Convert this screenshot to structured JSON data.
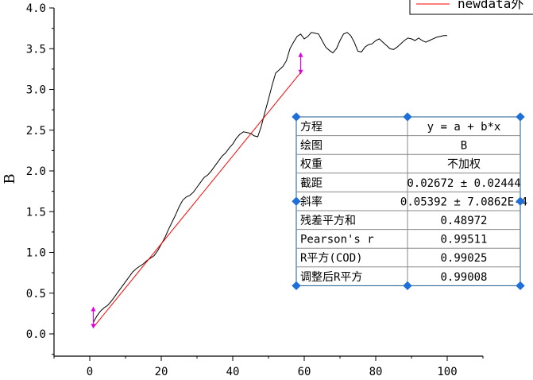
{
  "chart_data": {
    "type": "scatter",
    "xlabel": "",
    "ylabel": "B",
    "xlim": [
      -10,
      110
    ],
    "ylim": [
      -0.1,
      4.0
    ],
    "x_ticks": [
      "0",
      "20",
      "40",
      "60",
      "80",
      "100"
    ],
    "y_ticks": [
      "0.0",
      "0.5",
      "1.0",
      "1.5",
      "2.0",
      "2.5",
      "3.0",
      "3.5",
      "4.0"
    ],
    "series": [
      {
        "name": "",
        "color": "#000000",
        "x": [
          1,
          2,
          3,
          4,
          5,
          6,
          7,
          8,
          9,
          10,
          11,
          12,
          13,
          14,
          15,
          16,
          17,
          18,
          19,
          20,
          21,
          22,
          23,
          24,
          25,
          26,
          27,
          28,
          29,
          30,
          31,
          32,
          33,
          34,
          35,
          36,
          37,
          38,
          39,
          40,
          41,
          42,
          43,
          44,
          45,
          46,
          47,
          48,
          49,
          50,
          51,
          52,
          53,
          54,
          55,
          56,
          57,
          58,
          59,
          60,
          61,
          62,
          63,
          64,
          65,
          66,
          67,
          68,
          69,
          70,
          71,
          72,
          73,
          74,
          75,
          76,
          77,
          78,
          79,
          80,
          81,
          82,
          83,
          84,
          85,
          86,
          87,
          88,
          89,
          90,
          91,
          92,
          93,
          94,
          95,
          96,
          97,
          98,
          99,
          100
        ],
        "y": [
          0.14,
          0.22,
          0.28,
          0.32,
          0.35,
          0.4,
          0.46,
          0.52,
          0.58,
          0.64,
          0.7,
          0.76,
          0.8,
          0.83,
          0.86,
          0.9,
          0.93,
          0.96,
          1.02,
          1.1,
          1.18,
          1.28,
          1.37,
          1.46,
          1.56,
          1.64,
          1.68,
          1.7,
          1.74,
          1.8,
          1.86,
          1.92,
          1.95,
          2.0,
          2.06,
          2.12,
          2.18,
          2.22,
          2.28,
          2.33,
          2.4,
          2.45,
          2.48,
          2.47,
          2.46,
          2.43,
          2.42,
          2.55,
          2.72,
          2.88,
          3.05,
          3.2,
          3.24,
          3.28,
          3.35,
          3.5,
          3.58,
          3.65,
          3.68,
          3.62,
          3.65,
          3.7,
          3.69,
          3.68,
          3.6,
          3.52,
          3.48,
          3.45,
          3.5,
          3.6,
          3.68,
          3.7,
          3.66,
          3.58,
          3.47,
          3.46,
          3.52,
          3.55,
          3.56,
          3.6,
          3.62,
          3.58,
          3.54,
          3.5,
          3.49,
          3.52,
          3.56,
          3.6,
          3.63,
          3.62,
          3.6,
          3.63,
          3.6,
          3.58,
          3.6,
          3.62,
          3.64,
          3.65,
          3.66,
          3.66
        ]
      },
      {
        "name": "newdata外",
        "color": "#ff0000",
        "x": [
          1,
          59
        ],
        "y": [
          0.08,
          3.208
        ]
      }
    ],
    "fit_table": [
      {
        "label": "方程",
        "value": "y = a + b*x"
      },
      {
        "label": "绘图",
        "value": "B"
      },
      {
        "label": "权重",
        "value": "不加权"
      },
      {
        "label": "截距",
        "value": "0.02672 ± 0.02444"
      },
      {
        "label": "斜率",
        "value": "0.05392 ± 7.0862E-4"
      },
      {
        "label": "残差平方和",
        "value": "0.48972"
      },
      {
        "label": "Pearson's r",
        "value": "0.99511"
      },
      {
        "label": "R平方(COD)",
        "value": "0.99025"
      },
      {
        "label": "调整后R平方",
        "value": "0.99008"
      }
    ],
    "grid": false,
    "legend": "top-right"
  },
  "colors": {
    "data_line": "#000000",
    "fit_line": "#ff0000",
    "marker": "#e000e0",
    "selection_handle": "#1e6fd9",
    "table_border": "#1a5a8c"
  }
}
